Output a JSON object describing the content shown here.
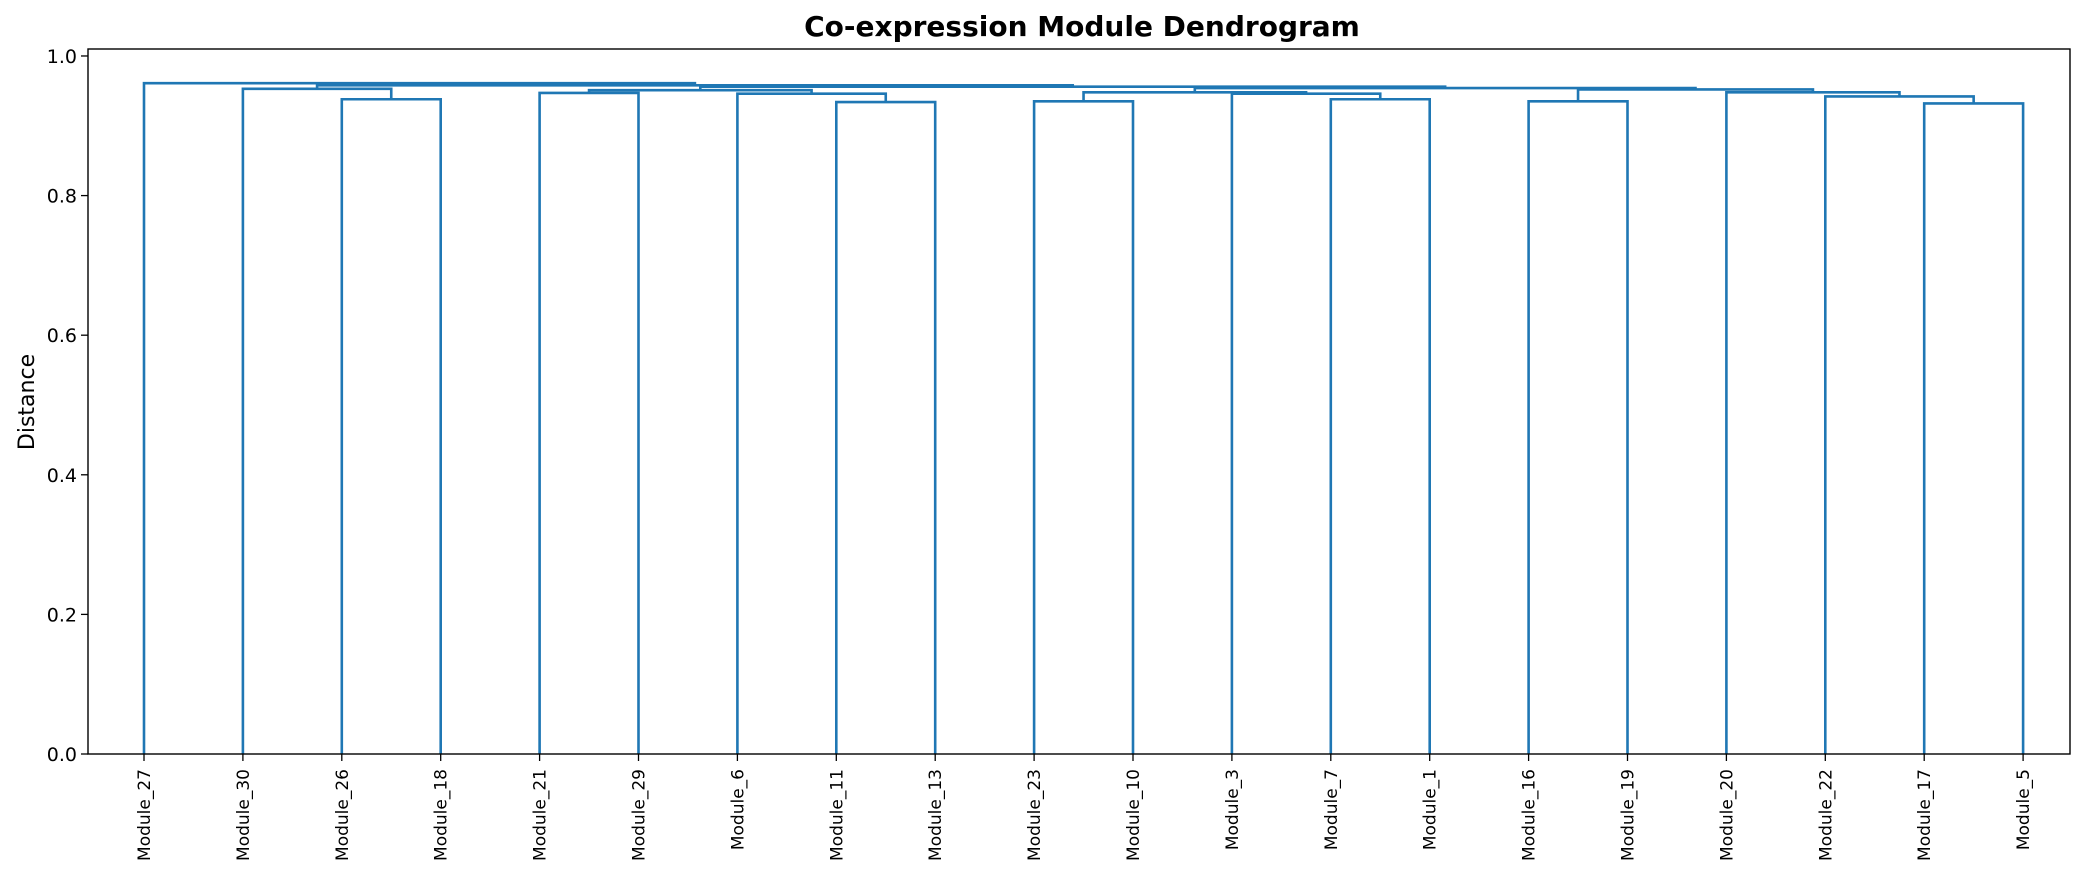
{
  "chart_data": {
    "type": "dendrogram",
    "title": "Co-expression Module Dendrogram",
    "xlabel": "",
    "ylabel": "Distance",
    "ylim": [
      0,
      1.01
    ],
    "yticks": [
      "0.0",
      "0.2",
      "0.4",
      "0.6",
      "0.8",
      "1.0"
    ],
    "grid": false,
    "line_color": "#1f77b4",
    "leaves": [
      "Module_27",
      "Module_30",
      "Module_26",
      "Module_18",
      "Module_21",
      "Module_29",
      "Module_6",
      "Module_11",
      "Module_13",
      "Module_23",
      "Module_10",
      "Module_3",
      "Module_7",
      "Module_1",
      "Module_16",
      "Module_19",
      "Module_20",
      "Module_22",
      "Module_17",
      "Module_5"
    ],
    "merges": [
      {
        "left": "Module_26",
        "right": "Module_18",
        "height": 0.938
      },
      {
        "left": "Module_30",
        "right": "Module_26+Module_18",
        "height": 0.953
      },
      {
        "left": "Module_21",
        "right": "Module_29",
        "height": 0.947
      },
      {
        "left": "Module_11",
        "right": "Module_13",
        "height": 0.934
      },
      {
        "left": "Module_6",
        "right": "Module_11+Module_13",
        "height": 0.946
      },
      {
        "left": "Module_21+Module_29",
        "right": "Module_6+Module_11+Module_13",
        "height": 0.951
      },
      {
        "left": "Module_23",
        "right": "Module_10",
        "height": 0.935
      },
      {
        "left": "Module_7",
        "right": "Module_1",
        "height": 0.938
      },
      {
        "left": "Module_3",
        "right": "Module_7+Module_1",
        "height": 0.946
      },
      {
        "left": "Module_23+Module_10",
        "right": "Module_3+Module_7+Module_1",
        "height": 0.948
      },
      {
        "left": "Module_16",
        "right": "Module_19",
        "height": 0.935
      },
      {
        "left": "Module_17",
        "right": "Module_5",
        "height": 0.932
      },
      {
        "left": "Module_22",
        "right": "Module_17+Module_5",
        "height": 0.942
      },
      {
        "left": "Module_20",
        "right": "Module_22+Module_17+Module_5",
        "height": 0.948
      },
      {
        "left": "Module_16+Module_19",
        "right": "Module_20+Module_22+Module_17+Module_5",
        "height": 0.952
      },
      {
        "left": "Module_23+Module_10+Module_3+Module_7+Module_1",
        "right": "Module_16+Module_19+Module_20+Module_22+Module_17+Module_5",
        "height": 0.954
      },
      {
        "left": "Module_21+Module_29+Module_6+Module_11+Module_13",
        "right": "Module_23+Module_10+Module_3+Module_7+Module_1+Module_16+Module_19+Module_20+Module_22+Module_17+Module_5",
        "height": 0.956
      },
      {
        "left": "Module_30+Module_26+Module_18",
        "right": "Module_21+Module_29+Module_6+Module_11+Module_13+Module_23+Module_10+Module_3+Module_7+Module_1+Module_16+Module_19+Module_20+Module_22+Module_17+Module_5",
        "height": 0.958
      },
      {
        "left": "Module_27",
        "right": "Module_30+Module_26+Module_18+Module_21+Module_29+Module_6+Module_11+Module_13+Module_23+Module_10+Module_3+Module_7+Module_1+Module_16+Module_19+Module_20+Module_22+Module_17+Module_5",
        "height": 0.961
      }
    ]
  }
}
